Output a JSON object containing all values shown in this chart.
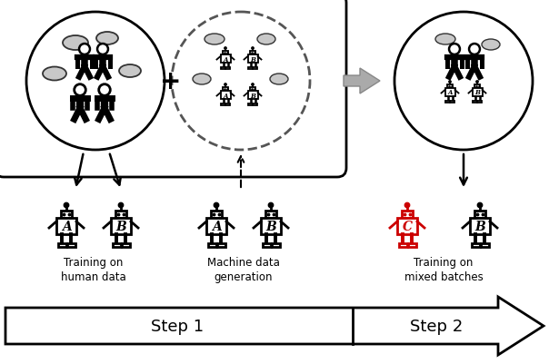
{
  "bg_color": "#ffffff",
  "step1_label": "Step 1",
  "step2_label": "Step 2",
  "label_training_human": "Training on\nhuman data",
  "label_machine_gen": "Machine data\ngeneration",
  "label_training_mixed": "Training on\nmixed batches",
  "robot_color_black": "#000000",
  "robot_color_red": "#cc0000",
  "speech_bubble_color": "#c8c8c8",
  "dashed_circle_color": "#555555",
  "gray_arrow_color": "#999999",
  "label_A": "A",
  "label_B": "B",
  "label_C": "C"
}
